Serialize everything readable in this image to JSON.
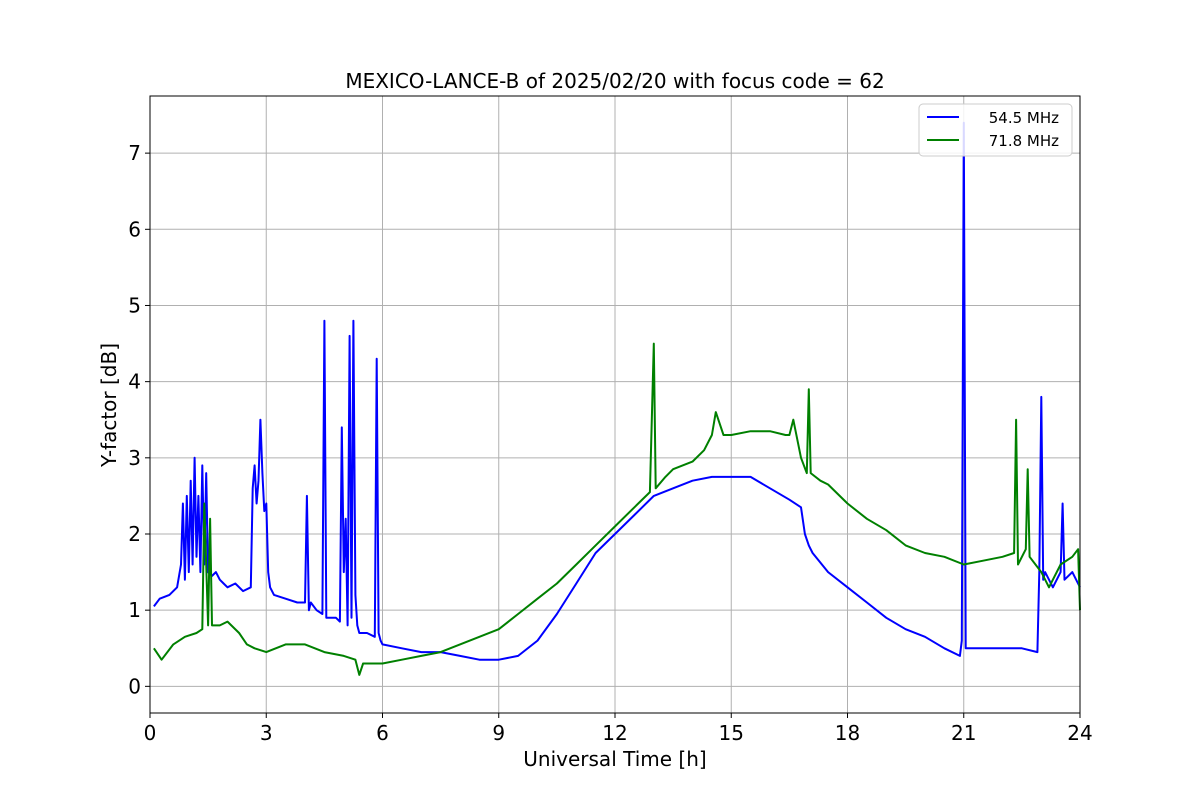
{
  "chart_data": {
    "type": "line",
    "title": "MEXICO-LANCE-B of 2025/02/20 with focus code = 62",
    "xlabel": "Universal Time [h]",
    "ylabel": "Y-factor [dB]",
    "xlim": [
      0,
      24
    ],
    "ylim": [
      -0.35,
      7.75
    ],
    "xticks": [
      0,
      3,
      6,
      9,
      12,
      15,
      18,
      21,
      24
    ],
    "yticks": [
      0,
      1,
      2,
      3,
      4,
      5,
      6,
      7
    ],
    "grid": true,
    "legend_position": "top-right",
    "series": [
      {
        "name": "54.5 MHz",
        "color": "#0000ff",
        "x": [
          0.1,
          0.25,
          0.5,
          0.7,
          0.8,
          0.85,
          0.9,
          0.95,
          1.0,
          1.05,
          1.1,
          1.15,
          1.2,
          1.25,
          1.3,
          1.35,
          1.4,
          1.45,
          1.5,
          1.6,
          1.7,
          1.8,
          1.9,
          2.0,
          2.2,
          2.4,
          2.6,
          2.65,
          2.7,
          2.75,
          2.8,
          2.85,
          2.9,
          2.95,
          3.0,
          3.05,
          3.1,
          3.2,
          3.5,
          3.8,
          4.0,
          4.05,
          4.1,
          4.15,
          4.3,
          4.45,
          4.5,
          4.55,
          4.6,
          4.8,
          4.9,
          4.95,
          5.0,
          5.05,
          5.1,
          5.15,
          5.2,
          5.25,
          5.3,
          5.35,
          5.4,
          5.6,
          5.8,
          5.85,
          5.9,
          5.95,
          6.0,
          6.5,
          7.0,
          7.5,
          8.0,
          8.5,
          9.0,
          9.5,
          10.0,
          10.5,
          11.0,
          11.5,
          12.0,
          12.5,
          13.0,
          13.5,
          14.0,
          14.5,
          15.0,
          15.5,
          16.0,
          16.5,
          16.8,
          16.9,
          17.0,
          17.1,
          17.5,
          18.0,
          18.5,
          19.0,
          19.5,
          20.0,
          20.5,
          20.9,
          20.95,
          21.0,
          21.05,
          21.1,
          21.5,
          22.0,
          22.5,
          22.9,
          22.95,
          23.0,
          23.05,
          23.1,
          23.3,
          23.5,
          23.55,
          23.6,
          23.8,
          24.0
        ],
        "y": [
          1.05,
          1.15,
          1.2,
          1.3,
          1.6,
          2.4,
          1.4,
          2.5,
          1.5,
          2.7,
          1.6,
          3.0,
          1.7,
          2.5,
          1.5,
          2.9,
          1.6,
          2.8,
          1.5,
          1.45,
          1.5,
          1.4,
          1.35,
          1.3,
          1.35,
          1.25,
          1.3,
          2.6,
          2.9,
          2.4,
          2.7,
          3.5,
          2.8,
          2.3,
          2.4,
          1.5,
          1.3,
          1.2,
          1.15,
          1.1,
          1.1,
          2.5,
          1.0,
          1.1,
          1.0,
          0.95,
          4.8,
          0.9,
          0.9,
          0.9,
          0.85,
          3.4,
          1.5,
          2.2,
          0.8,
          4.6,
          0.9,
          4.8,
          1.2,
          0.8,
          0.7,
          0.7,
          0.65,
          4.3,
          0.7,
          0.6,
          0.55,
          0.5,
          0.45,
          0.45,
          0.4,
          0.35,
          0.35,
          0.4,
          0.6,
          0.95,
          1.35,
          1.75,
          2.0,
          2.25,
          2.5,
          2.6,
          2.7,
          2.75,
          2.75,
          2.75,
          2.6,
          2.45,
          2.35,
          2.0,
          1.85,
          1.75,
          1.5,
          1.3,
          1.1,
          0.9,
          0.75,
          0.65,
          0.5,
          0.4,
          0.6,
          7.4,
          0.5,
          0.5,
          0.5,
          0.5,
          0.5,
          0.45,
          1.5,
          3.8,
          1.4,
          1.5,
          1.3,
          1.5,
          2.4,
          1.4,
          1.5,
          1.3
        ]
      },
      {
        "name": "71.8 MHz",
        "color": "#008000",
        "x": [
          0.1,
          0.3,
          0.6,
          0.9,
          1.2,
          1.35,
          1.4,
          1.5,
          1.55,
          1.6,
          1.8,
          2.0,
          2.3,
          2.5,
          2.7,
          3.0,
          3.5,
          4.0,
          4.5,
          5.0,
          5.3,
          5.4,
          5.5,
          5.7,
          6.0,
          6.5,
          7.0,
          7.5,
          8.0,
          8.5,
          9.0,
          9.5,
          10.0,
          10.5,
          11.0,
          11.5,
          12.0,
          12.5,
          12.9,
          13.0,
          13.05,
          13.3,
          13.5,
          14.0,
          14.3,
          14.5,
          14.6,
          14.8,
          15.0,
          15.5,
          16.0,
          16.4,
          16.5,
          16.6,
          16.8,
          16.95,
          17.0,
          17.05,
          17.3,
          17.5,
          18.0,
          18.5,
          19.0,
          19.5,
          20.0,
          20.5,
          21.0,
          21.5,
          22.0,
          22.3,
          22.35,
          22.4,
          22.6,
          22.65,
          22.7,
          23.0,
          23.2,
          23.5,
          23.8,
          23.95,
          24.0
        ],
        "y": [
          0.5,
          0.35,
          0.55,
          0.65,
          0.7,
          0.75,
          2.4,
          0.8,
          2.2,
          0.8,
          0.8,
          0.85,
          0.7,
          0.55,
          0.5,
          0.45,
          0.55,
          0.55,
          0.45,
          0.4,
          0.35,
          0.15,
          0.3,
          0.3,
          0.3,
          0.35,
          0.4,
          0.45,
          0.55,
          0.65,
          0.75,
          0.95,
          1.15,
          1.35,
          1.6,
          1.85,
          2.1,
          2.35,
          2.55,
          4.5,
          2.6,
          2.75,
          2.85,
          2.95,
          3.1,
          3.3,
          3.6,
          3.3,
          3.3,
          3.35,
          3.35,
          3.3,
          3.3,
          3.5,
          3.0,
          2.8,
          3.9,
          2.8,
          2.7,
          2.65,
          2.4,
          2.2,
          2.05,
          1.85,
          1.75,
          1.7,
          1.6,
          1.65,
          1.7,
          1.75,
          3.5,
          1.6,
          1.8,
          2.85,
          1.7,
          1.5,
          1.3,
          1.6,
          1.7,
          1.8,
          1.0
        ]
      }
    ]
  }
}
